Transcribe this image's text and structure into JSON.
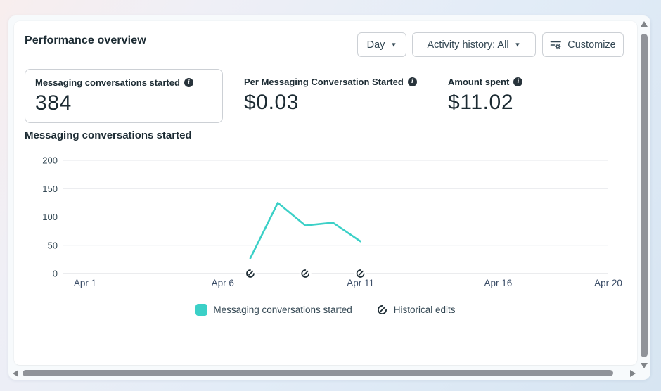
{
  "header": {
    "title": "Performance overview"
  },
  "toolbar": {
    "day_dropdown": {
      "label": "Day"
    },
    "activity_dropdown": {
      "label": "Activity history: All"
    },
    "customize_button": {
      "label": "Customize"
    }
  },
  "metrics": {
    "cards": [
      {
        "label": "Messaging conversations started",
        "value": "384",
        "selected": true
      },
      {
        "label": "Per Messaging Conversation Started",
        "value": "$0.03",
        "selected": false
      },
      {
        "label": "Amount spent",
        "value": "$11.02",
        "selected": false
      }
    ]
  },
  "chart_data": {
    "type": "line",
    "title": "Messaging conversations started",
    "x": [
      "Apr 7",
      "Apr 8",
      "Apr 9",
      "Apr 10",
      "Apr 11"
    ],
    "series": [
      {
        "name": "Messaging conversations started",
        "values": [
          27,
          125,
          85,
          90,
          57
        ]
      }
    ],
    "series_days": [
      7,
      8,
      9,
      10,
      11
    ],
    "historical_edit_days": [
      7,
      9,
      11
    ],
    "xlabel": "",
    "ylabel": "",
    "x_axis": {
      "tick_labels": [
        "Apr 1",
        "Apr 6",
        "Apr 11",
        "Apr 16",
        "Apr 20"
      ],
      "tick_days": [
        1,
        6,
        11,
        16,
        20
      ],
      "range_days": [
        1,
        20
      ]
    },
    "y_axis": {
      "ticks": [
        0,
        50,
        100,
        150,
        200
      ],
      "range": [
        0,
        200
      ]
    },
    "grid": true,
    "legend": {
      "position": "bottom",
      "items": [
        {
          "label": "Messaging conversations started",
          "marker": "teal-swatch"
        },
        {
          "label": "Historical edits",
          "marker": "historical-edit-icon"
        }
      ]
    },
    "colors": {
      "line": "#3bd0c7",
      "grid": "#e6e7eb",
      "zero_line": "#d7d9de",
      "y_label": "#344854",
      "x_label": "#3c4e68",
      "edit_icon": "#1c2b33"
    }
  },
  "icons": {
    "caret_down": "▼",
    "info": "i"
  }
}
